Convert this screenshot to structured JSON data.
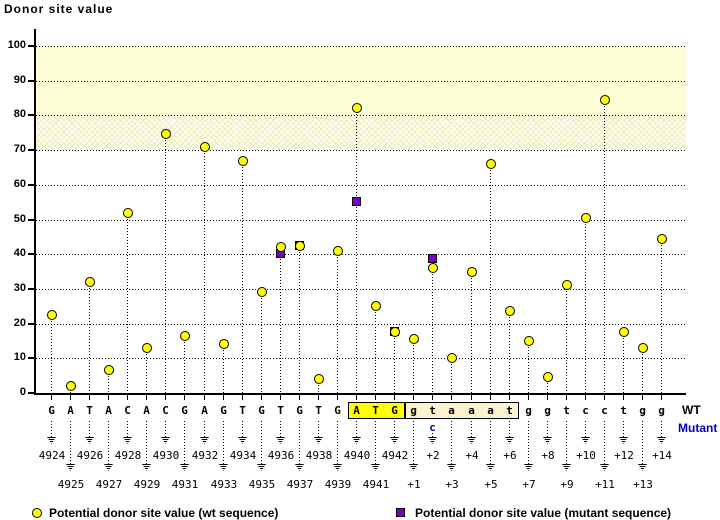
{
  "legend": {
    "wt": "Potential donor site value (wt sequence)",
    "mutant": "Potential donor site value (mutant sequence)"
  },
  "row_labels": {
    "wt": "WT",
    "mutant": "Mutant"
  },
  "colors": {
    "wt_marker": "#ffff00",
    "mutant_marker": "#7d00c8",
    "mutant_text": "#0000cc",
    "band_solid": "#fcfcd6",
    "codon_box_bg": "#ffff00",
    "downstream_box_bg": "#fbf3d0"
  },
  "chart_data": {
    "type": "scatter",
    "title": "Donor site value",
    "ylabel": "Donor site value",
    "ylim": [
      0,
      100
    ],
    "yticks": [
      0,
      10,
      20,
      30,
      40,
      50,
      60,
      70,
      80,
      90,
      100
    ],
    "grid": "dotted-horizontal",
    "legend_position": "bottom",
    "bands": [
      {
        "from": 80,
        "to": 100,
        "pattern": "solid"
      },
      {
        "from": 70,
        "to": 80,
        "pattern": "crosshatch"
      }
    ],
    "series_names": [
      "Potential donor site value (wt sequence)",
      "Potential donor site value (mutant sequence)"
    ],
    "mutant_base": {
      "index": 20,
      "base": "c"
    },
    "sites": [
      {
        "base": "G",
        "pos": "4924",
        "row": "top",
        "wt": 22.5,
        "mut": null,
        "box": null
      },
      {
        "base": "A",
        "pos": "4925",
        "row": "bottom",
        "wt": 2,
        "mut": null,
        "box": null
      },
      {
        "base": "T",
        "pos": "4926",
        "row": "top",
        "wt": 32,
        "mut": null,
        "box": null
      },
      {
        "base": "A",
        "pos": "4927",
        "row": "bottom",
        "wt": 6.5,
        "mut": null,
        "box": null
      },
      {
        "base": "C",
        "pos": "4928",
        "row": "top",
        "wt": 52,
        "mut": null,
        "box": null
      },
      {
        "base": "A",
        "pos": "4929",
        "row": "bottom",
        "wt": 13,
        "mut": null,
        "box": null
      },
      {
        "base": "C",
        "pos": "4930",
        "row": "top",
        "wt": 74.5,
        "mut": null,
        "box": null
      },
      {
        "base": "G",
        "pos": "4931",
        "row": "bottom",
        "wt": 16.5,
        "mut": null,
        "box": null
      },
      {
        "base": "A",
        "pos": "4932",
        "row": "top",
        "wt": 71,
        "mut": null,
        "box": null
      },
      {
        "base": "G",
        "pos": "4933",
        "row": "bottom",
        "wt": 14,
        "mut": null,
        "box": null
      },
      {
        "base": "T",
        "pos": "4934",
        "row": "top",
        "wt": 67,
        "mut": null,
        "box": null
      },
      {
        "base": "G",
        "pos": "4935",
        "row": "bottom",
        "wt": 29,
        "mut": null,
        "box": null
      },
      {
        "base": "T",
        "pos": "4936",
        "row": "top",
        "wt": 42,
        "mut": 40,
        "box": null
      },
      {
        "base": "G",
        "pos": "4937",
        "row": "bottom",
        "wt": 42.5,
        "mut": 42.5,
        "box": null
      },
      {
        "base": "T",
        "pos": "4938",
        "row": "top",
        "wt": 4,
        "mut": null,
        "box": null
      },
      {
        "base": "G",
        "pos": "4939",
        "row": "bottom",
        "wt": 41,
        "mut": null,
        "box": null
      },
      {
        "base": "A",
        "pos": "4940",
        "row": "top",
        "wt": 82,
        "mut": 55,
        "box": "codon"
      },
      {
        "base": "T",
        "pos": "4941",
        "row": "bottom",
        "wt": 25,
        "mut": null,
        "box": "codon"
      },
      {
        "base": "G",
        "pos": "4942",
        "row": "top",
        "wt": 17.5,
        "mut": 17.5,
        "box": "codon"
      },
      {
        "base": "g",
        "pos": "+1",
        "row": "bottom",
        "wt": 15.5,
        "mut": null,
        "box": "downstream"
      },
      {
        "base": "t",
        "pos": "+2",
        "row": "top",
        "wt": 36,
        "mut": 38.5,
        "box": "downstream"
      },
      {
        "base": "a",
        "pos": "+3",
        "row": "bottom",
        "wt": 10,
        "mut": null,
        "box": "downstream"
      },
      {
        "base": "a",
        "pos": "+4",
        "row": "top",
        "wt": 35,
        "mut": null,
        "box": "downstream"
      },
      {
        "base": "a",
        "pos": "+5",
        "row": "bottom",
        "wt": 66,
        "mut": null,
        "box": "downstream"
      },
      {
        "base": "t",
        "pos": "+6",
        "row": "top",
        "wt": 23.5,
        "mut": null,
        "box": "downstream"
      },
      {
        "base": "g",
        "pos": "+7",
        "row": "bottom",
        "wt": 15,
        "mut": null,
        "box": null
      },
      {
        "base": "g",
        "pos": "+8",
        "row": "top",
        "wt": 4.5,
        "mut": null,
        "box": null
      },
      {
        "base": "t",
        "pos": "+9",
        "row": "bottom",
        "wt": 31,
        "mut": null,
        "box": null
      },
      {
        "base": "c",
        "pos": "+10",
        "row": "top",
        "wt": 50.5,
        "mut": null,
        "box": null
      },
      {
        "base": "c",
        "pos": "+11",
        "row": "bottom",
        "wt": 84.5,
        "mut": null,
        "box": null
      },
      {
        "base": "t",
        "pos": "+12",
        "row": "top",
        "wt": 17.5,
        "mut": null,
        "box": null
      },
      {
        "base": "g",
        "pos": "+13",
        "row": "bottom",
        "wt": 13,
        "mut": null,
        "box": null
      },
      {
        "base": "g",
        "pos": "+14",
        "row": "top",
        "wt": 44.5,
        "mut": null,
        "box": null
      }
    ]
  }
}
